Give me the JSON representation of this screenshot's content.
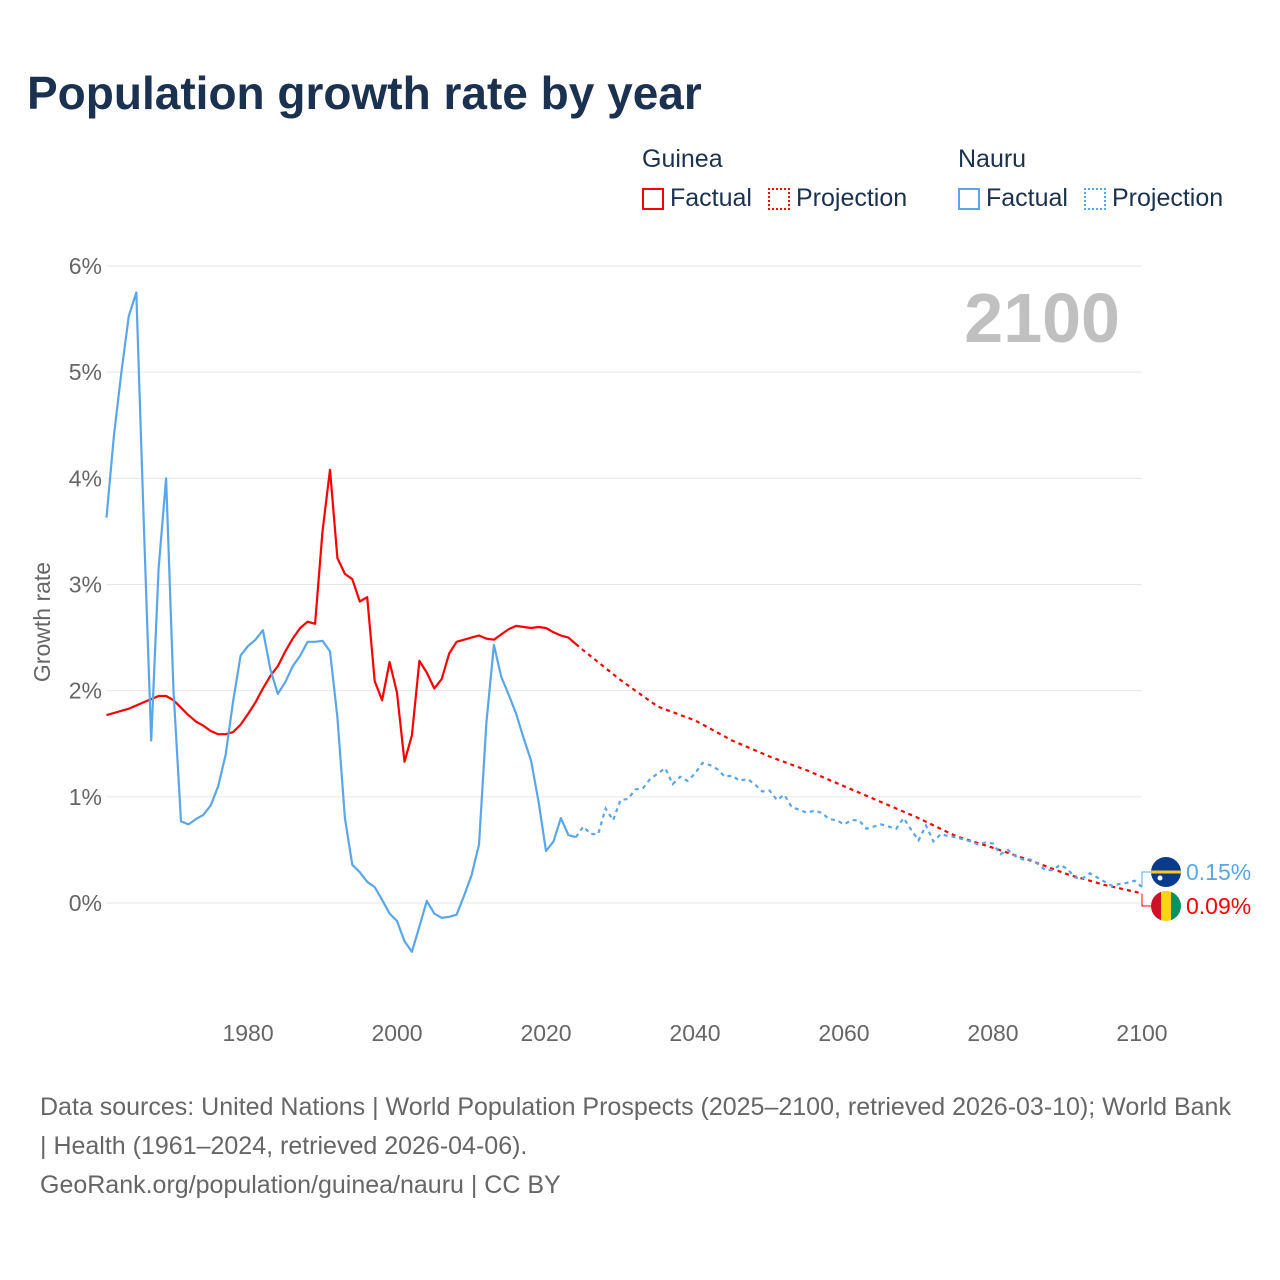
{
  "title": "Population growth rate by year",
  "legend": {
    "groups": [
      {
        "name": "Guinea",
        "factual": "Factual",
        "projection": "Projection",
        "color": "#ff0000"
      },
      {
        "name": "Nauru",
        "factual": "Factual",
        "projection": "Projection",
        "color": "#5aa6ea"
      }
    ]
  },
  "footer": {
    "sources": "Data sources: United Nations | World Population Prospects (2025–2100, retrieved 2026-03-10); World Bank | Health (1961–2024, retrieved 2026-04-06).",
    "credit": "GeoRank.org/population/guinea/nauru | CC BY"
  },
  "chart_data": {
    "type": "line",
    "title": "Population growth rate by year",
    "ylabel": "Growth rate",
    "xlabel": "",
    "current_year_label": "2100",
    "xlim": [
      1961,
      2100
    ],
    "ylim": [
      -0.9,
      6
    ],
    "xticks": [
      1980,
      2000,
      2020,
      2040,
      2060,
      2080,
      2100
    ],
    "yticks": [
      0,
      1,
      2,
      3,
      4,
      5,
      6
    ],
    "ytick_labels": [
      "0%",
      "1%",
      "2%",
      "3%",
      "4%",
      "5%",
      "6%"
    ],
    "grid": true,
    "legend_position": "top-right",
    "series": [
      {
        "name": "Guinea",
        "color": "#ff0000",
        "end_label": "0.09%",
        "factual": {
          "x_start": 1961,
          "values": [
            1.77,
            1.79,
            1.81,
            1.83,
            1.86,
            1.89,
            1.92,
            1.95,
            1.95,
            1.91,
            1.84,
            1.77,
            1.71,
            1.67,
            1.62,
            1.59,
            1.59,
            1.61,
            1.68,
            1.78,
            1.89,
            2.02,
            2.14,
            2.23,
            2.37,
            2.49,
            2.59,
            2.65,
            2.63,
            3.5,
            4.08,
            3.25,
            3.1,
            3.05,
            2.84,
            2.88,
            2.09,
            1.91,
            2.27,
            1.98,
            1.33,
            1.58,
            2.28,
            2.17,
            2.02,
            2.11,
            2.35,
            2.46,
            2.48,
            2.5,
            2.52,
            2.49,
            2.48,
            2.53,
            2.58,
            2.61,
            2.6,
            2.59,
            2.6,
            2.59,
            2.55,
            2.52,
            2.5,
            2.44
          ]
        },
        "projection": {
          "x": [
            2025,
            2030,
            2035,
            2040,
            2045,
            2050,
            2055,
            2060,
            2065,
            2070,
            2075,
            2080,
            2085,
            2090,
            2095,
            2100
          ],
          "values": [
            2.38,
            2.1,
            1.85,
            1.72,
            1.53,
            1.38,
            1.25,
            1.1,
            0.95,
            0.8,
            0.63,
            0.52,
            0.4,
            0.27,
            0.17,
            0.09
          ]
        }
      },
      {
        "name": "Nauru",
        "color": "#5aa6ea",
        "end_label": "0.15%",
        "factual": {
          "x_start": 1961,
          "values": [
            3.63,
            4.4,
            5.0,
            5.53,
            5.75,
            3.6,
            1.53,
            3.15,
            4.0,
            2.0,
            0.77,
            0.74,
            0.79,
            0.83,
            0.92,
            1.1,
            1.4,
            1.9,
            2.33,
            2.42,
            2.48,
            2.57,
            2.2,
            1.97,
            2.08,
            2.23,
            2.33,
            2.46,
            2.46,
            2.47,
            2.37,
            1.75,
            0.8,
            0.36,
            0.29,
            0.2,
            0.15,
            0.03,
            -0.1,
            -0.17,
            -0.36,
            -0.46,
            -0.22,
            0.02,
            -0.1,
            -0.14,
            -0.13,
            -0.11,
            0.07,
            0.26,
            0.55,
            1.7,
            2.43,
            2.13,
            1.96,
            1.78,
            1.55,
            1.34,
            0.95,
            0.49,
            0.58,
            0.8,
            0.64,
            0.62
          ]
        },
        "projection": {
          "x_start": 2025,
          "values": [
            0.72,
            0.65,
            0.65,
            0.89,
            0.78,
            0.97,
            0.98,
            1.07,
            1.08,
            1.17,
            1.22,
            1.27,
            1.12,
            1.19,
            1.15,
            1.22,
            1.32,
            1.3,
            1.26,
            1.19,
            1.2,
            1.15,
            1.17,
            1.12,
            1.05,
            1.06,
            0.97,
            1.02,
            0.9,
            0.88,
            0.85,
            0.87,
            0.85,
            0.79,
            0.78,
            0.74,
            0.78,
            0.78,
            0.7,
            0.72,
            0.74,
            0.72,
            0.7,
            0.8,
            0.69,
            0.59,
            0.73,
            0.58,
            0.65,
            0.63,
            0.62,
            0.6,
            0.58,
            0.55,
            0.57,
            0.56,
            0.46,
            0.5,
            0.44,
            0.41,
            0.41,
            0.37,
            0.31,
            0.31,
            0.36,
            0.32,
            0.24,
            0.23,
            0.28,
            0.24,
            0.2,
            0.16,
            0.18,
            0.19,
            0.21,
            0.15
          ]
        }
      }
    ]
  }
}
